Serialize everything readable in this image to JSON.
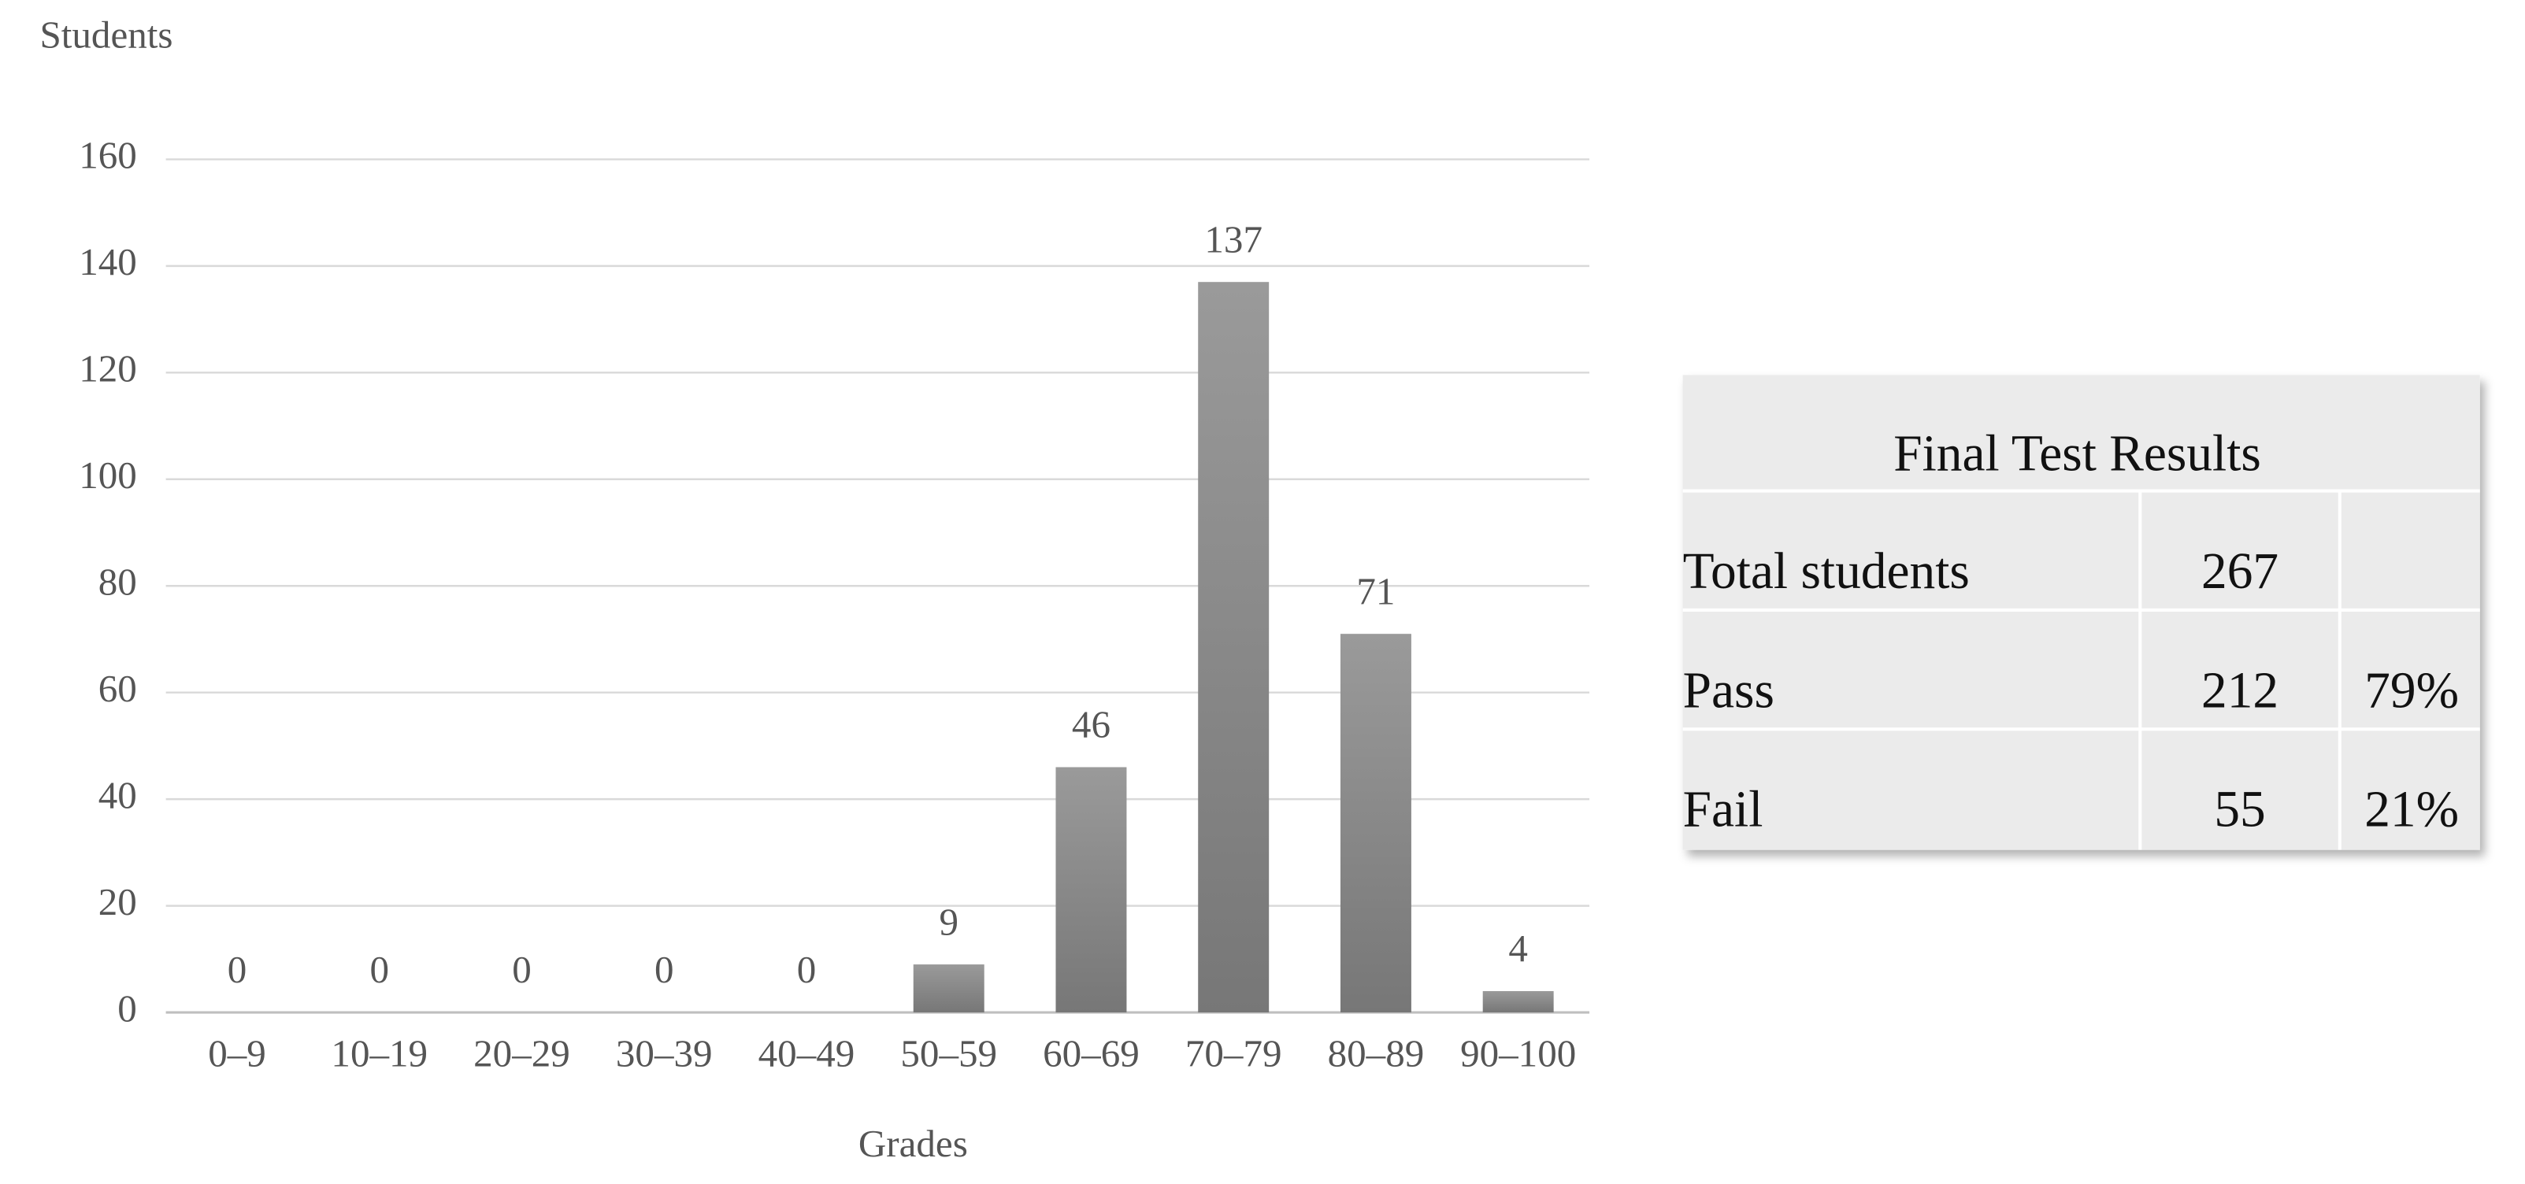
{
  "chart_data": {
    "type": "bar",
    "y_label": "Students",
    "x_label": "Grades",
    "categories": [
      "0–9",
      "10–19",
      "20–29",
      "30–39",
      "40–49",
      "50–59",
      "60–69",
      "70–79",
      "80–89",
      "90–100"
    ],
    "values": [
      0,
      0,
      0,
      0,
      0,
      9,
      46,
      137,
      71,
      4
    ],
    "color": "#8a8a8a",
    "ylim": [
      0,
      160
    ],
    "yticks": [
      0,
      20,
      40,
      60,
      80,
      100,
      120,
      140,
      160
    ],
    "grid": true,
    "data_labels": true
  },
  "table": {
    "title": "Final Test Results",
    "rows": [
      [
        "Total students",
        267
      ],
      [
        "Pass",
        212,
        "79%"
      ],
      [
        "Fail",
        55,
        "21%"
      ]
    ]
  }
}
